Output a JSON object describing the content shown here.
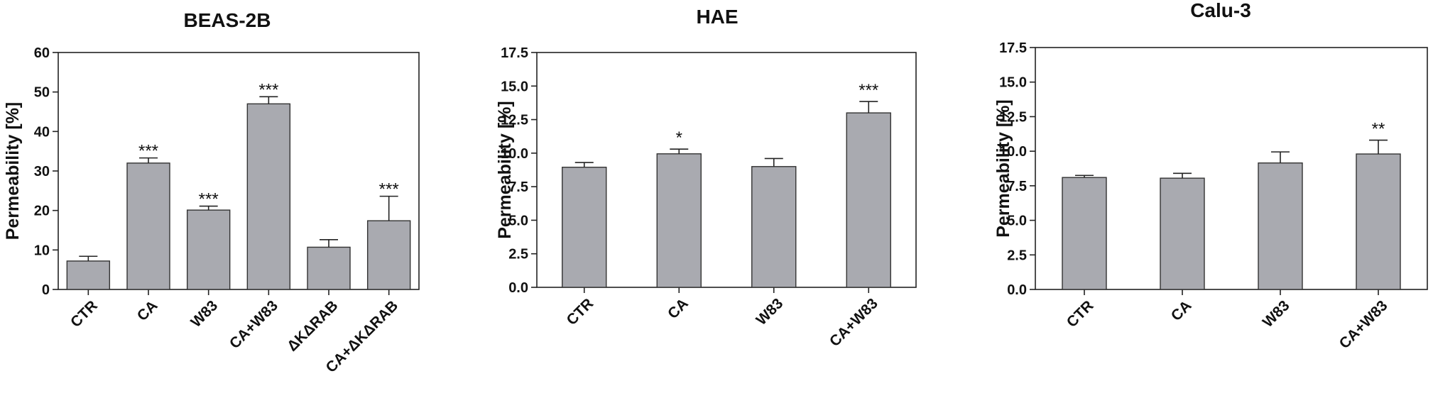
{
  "chart_data": [
    {
      "type": "bar",
      "title": "BEAS-2B",
      "ylabel": "Permeability [%]",
      "xlabel": "",
      "ylim": [
        0,
        60
      ],
      "yticks": [
        "0",
        "10",
        "20",
        "30",
        "40",
        "50",
        "60"
      ],
      "categories": [
        "CTR",
        "CA",
        "W83",
        "CA+W83",
        "ΔKΔRAB",
        "CA+ΔKΔRAB"
      ],
      "values": [
        7.2,
        32,
        20.1,
        47,
        10.7,
        17.4
      ],
      "errors": [
        1.2,
        1.3,
        1.0,
        1.8,
        1.9,
        6.2
      ],
      "significance": [
        "",
        "***",
        "***",
        "***",
        "",
        "***"
      ],
      "bar_color": "#a9aab0",
      "grid": false
    },
    {
      "type": "bar",
      "title": "HAE",
      "ylabel": "Permeability [%]",
      "xlabel": "",
      "ylim": [
        0,
        17.5
      ],
      "yticks": [
        "0.0",
        "2.5",
        "5.0",
        "7.5",
        "10.0",
        "12.5",
        "15.0",
        "17.5"
      ],
      "categories": [
        "CTR",
        "CA",
        "W83",
        "CA+W83"
      ],
      "values": [
        8.95,
        9.95,
        9.0,
        13.0
      ],
      "errors": [
        0.35,
        0.35,
        0.6,
        0.85
      ],
      "significance": [
        "",
        "*",
        "",
        "***"
      ],
      "bar_color": "#a9aab0",
      "grid": false
    },
    {
      "type": "bar",
      "title": "Calu-3",
      "ylabel": "Permeability [%]",
      "xlabel": "",
      "ylim": [
        0,
        17.5
      ],
      "yticks": [
        "0.0",
        "2.5",
        "5.0",
        "7.5",
        "10.0",
        "12.5",
        "15.0",
        "17.5"
      ],
      "categories": [
        "CTR",
        "CA",
        "W83",
        "CA+W83"
      ],
      "values": [
        8.1,
        8.05,
        9.15,
        9.8
      ],
      "errors": [
        0.15,
        0.35,
        0.8,
        1.0
      ],
      "significance": [
        "",
        "",
        "",
        "**"
      ],
      "bar_color": "#a9aab0",
      "grid": false
    }
  ]
}
